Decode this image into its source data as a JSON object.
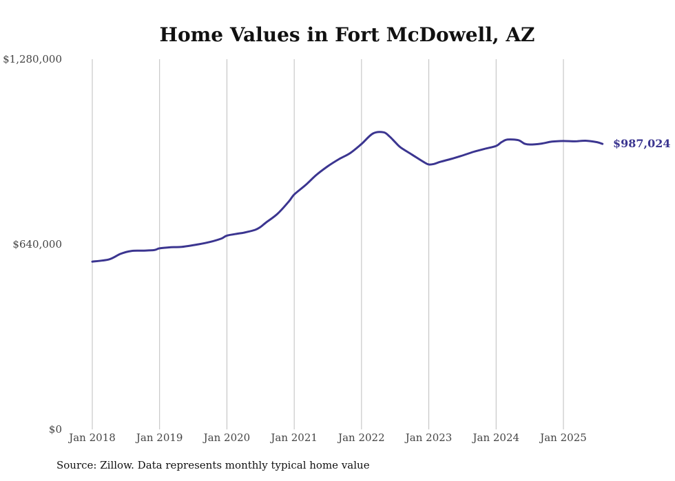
{
  "chart_data": {
    "type": "line",
    "title": "Home Values in Fort McDowell, AZ",
    "xlabel": "",
    "ylabel": "",
    "ylim": [
      0,
      1280000
    ],
    "y_ticks": [
      {
        "value": 0,
        "label": "$0"
      },
      {
        "value": 640000,
        "label": "$640,000"
      },
      {
        "value": 1280000,
        "label": "$1,280,000"
      }
    ],
    "x_ticks": [
      {
        "value": 2018,
        "label": "Jan 2018"
      },
      {
        "value": 2019,
        "label": "Jan 2019"
      },
      {
        "value": 2020,
        "label": "Jan 2020"
      },
      {
        "value": 2021,
        "label": "Jan 2021"
      },
      {
        "value": 2022,
        "label": "Jan 2022"
      },
      {
        "value": 2023,
        "label": "Jan 2023"
      },
      {
        "value": 2024,
        "label": "Jan 2024"
      },
      {
        "value": 2025,
        "label": "Jan 2025"
      }
    ],
    "xlim": [
      2018,
      2025.58
    ],
    "grid": "vertical",
    "series": [
      {
        "name": "Typical home value",
        "color": "#3b3590",
        "x": [
          2018.0,
          2018.25,
          2018.42,
          2018.58,
          2018.75,
          2018.92,
          2019.0,
          2019.17,
          2019.33,
          2019.58,
          2019.75,
          2019.92,
          2020.0,
          2020.17,
          2020.25,
          2020.42,
          2020.5,
          2020.58,
          2020.75,
          2020.92,
          2021.0,
          2021.17,
          2021.33,
          2021.5,
          2021.67,
          2021.83,
          2022.0,
          2022.17,
          2022.33,
          2022.42,
          2022.5,
          2022.58,
          2022.75,
          2022.92,
          2023.0,
          2023.08,
          2023.17,
          2023.33,
          2023.5,
          2023.67,
          2023.83,
          2024.0,
          2024.08,
          2024.17,
          2024.33,
          2024.42,
          2024.5,
          2024.67,
          2024.83,
          2025.0,
          2025.17,
          2025.33,
          2025.5,
          2025.58
        ],
        "values": [
          580000,
          588000,
          607000,
          617000,
          618000,
          620000,
          626000,
          630000,
          631000,
          640000,
          648000,
          660000,
          670000,
          677000,
          680000,
          690000,
          700000,
          715000,
          745000,
          788000,
          812000,
          845000,
          880000,
          910000,
          935000,
          955000,
          987000,
          1023000,
          1027000,
          1012000,
          993000,
          975000,
          950000,
          925000,
          916000,
          918000,
          925000,
          935000,
          947000,
          960000,
          970000,
          980000,
          993000,
          1002000,
          1000000,
          988000,
          985000,
          988000,
          995000,
          997000,
          996000,
          998000,
          993000,
          987024
        ]
      }
    ],
    "end_label": "$987,024"
  },
  "source_text": "Source: Zillow. Data represents monthly typical home value"
}
